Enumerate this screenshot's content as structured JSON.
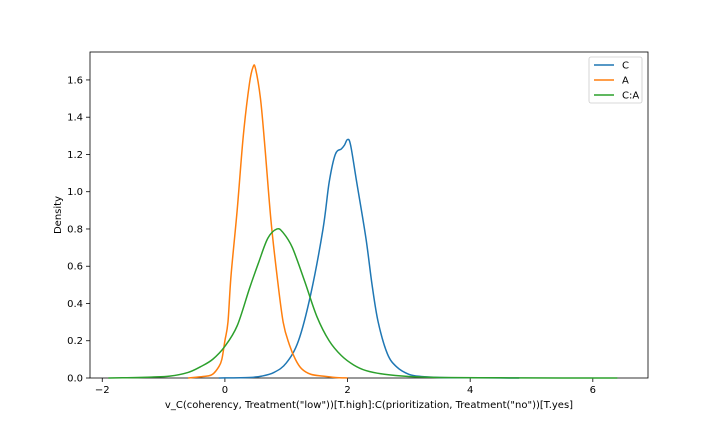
{
  "chart_data": {
    "type": "line",
    "title": "",
    "xlabel": "v_C(coherency, Treatment(\"low\"))[T.high]:C(prioritization, Treatment(\"no\"))[T.yes]",
    "ylabel": "Density",
    "xlim": [
      -2.2,
      6.9
    ],
    "ylim": [
      0,
      1.75
    ],
    "xticks": [
      -2,
      0,
      2,
      4,
      6
    ],
    "xtick_labels": [
      "−2",
      "0",
      "2",
      "4",
      "6"
    ],
    "yticks": [
      0.0,
      0.2,
      0.4,
      0.6,
      0.8,
      1.0,
      1.2,
      1.4,
      1.6
    ],
    "ytick_labels": [
      "0.0",
      "0.2",
      "0.4",
      "0.6",
      "0.8",
      "1.0",
      "1.2",
      "1.4",
      "1.6"
    ],
    "grid": false,
    "legend": "top-right",
    "series": [
      {
        "name": "C",
        "color": "#1f77b4",
        "points": [
          [
            -0.1,
            0
          ],
          [
            0.4,
            0.003
          ],
          [
            0.6,
            0.01
          ],
          [
            0.8,
            0.03
          ],
          [
            1.0,
            0.08
          ],
          [
            1.2,
            0.2
          ],
          [
            1.4,
            0.45
          ],
          [
            1.6,
            0.8
          ],
          [
            1.7,
            1.05
          ],
          [
            1.8,
            1.2
          ],
          [
            1.9,
            1.23
          ],
          [
            1.95,
            1.25
          ],
          [
            2.0,
            1.28
          ],
          [
            2.05,
            1.25
          ],
          [
            2.15,
            1.05
          ],
          [
            2.3,
            0.75
          ],
          [
            2.4,
            0.5
          ],
          [
            2.5,
            0.3
          ],
          [
            2.65,
            0.13
          ],
          [
            2.8,
            0.06
          ],
          [
            3.0,
            0.02
          ],
          [
            3.2,
            0.008
          ],
          [
            3.5,
            0.003
          ],
          [
            4.0,
            0.001
          ],
          [
            4.8,
            0
          ]
        ]
      },
      {
        "name": "A",
        "color": "#ff7f0e",
        "points": [
          [
            -0.6,
            0
          ],
          [
            -0.3,
            0.01
          ],
          [
            -0.2,
            0.02
          ],
          [
            -0.1,
            0.06
          ],
          [
            -0.05,
            0.1
          ],
          [
            0.0,
            0.2
          ],
          [
            0.05,
            0.3
          ],
          [
            0.1,
            0.55
          ],
          [
            0.2,
            0.9
          ],
          [
            0.3,
            1.3
          ],
          [
            0.4,
            1.58
          ],
          [
            0.46,
            1.67
          ],
          [
            0.5,
            1.66
          ],
          [
            0.58,
            1.5
          ],
          [
            0.65,
            1.25
          ],
          [
            0.75,
            0.85
          ],
          [
            0.85,
            0.55
          ],
          [
            0.95,
            0.3
          ],
          [
            1.05,
            0.18
          ],
          [
            1.15,
            0.1
          ],
          [
            1.25,
            0.05
          ],
          [
            1.4,
            0.02
          ],
          [
            1.6,
            0.01
          ],
          [
            1.8,
            0.003
          ],
          [
            2.0,
            0
          ]
        ]
      },
      {
        "name": "C:A",
        "color": "#2ca02c",
        "points": [
          [
            -1.9,
            0
          ],
          [
            -1.5,
            0.002
          ],
          [
            -1.2,
            0.005
          ],
          [
            -0.9,
            0.01
          ],
          [
            -0.6,
            0.03
          ],
          [
            -0.4,
            0.06
          ],
          [
            -0.2,
            0.1
          ],
          [
            0.0,
            0.17
          ],
          [
            0.2,
            0.28
          ],
          [
            0.4,
            0.48
          ],
          [
            0.55,
            0.62
          ],
          [
            0.7,
            0.75
          ],
          [
            0.85,
            0.8
          ],
          [
            0.95,
            0.78
          ],
          [
            1.1,
            0.7
          ],
          [
            1.3,
            0.52
          ],
          [
            1.5,
            0.33
          ],
          [
            1.7,
            0.2
          ],
          [
            1.9,
            0.12
          ],
          [
            2.1,
            0.07
          ],
          [
            2.3,
            0.04
          ],
          [
            2.6,
            0.02
          ],
          [
            3.0,
            0.008
          ],
          [
            3.5,
            0.003
          ],
          [
            4.5,
            0.001
          ],
          [
            5.5,
            0
          ],
          [
            6.4,
            0
          ]
        ]
      }
    ]
  }
}
